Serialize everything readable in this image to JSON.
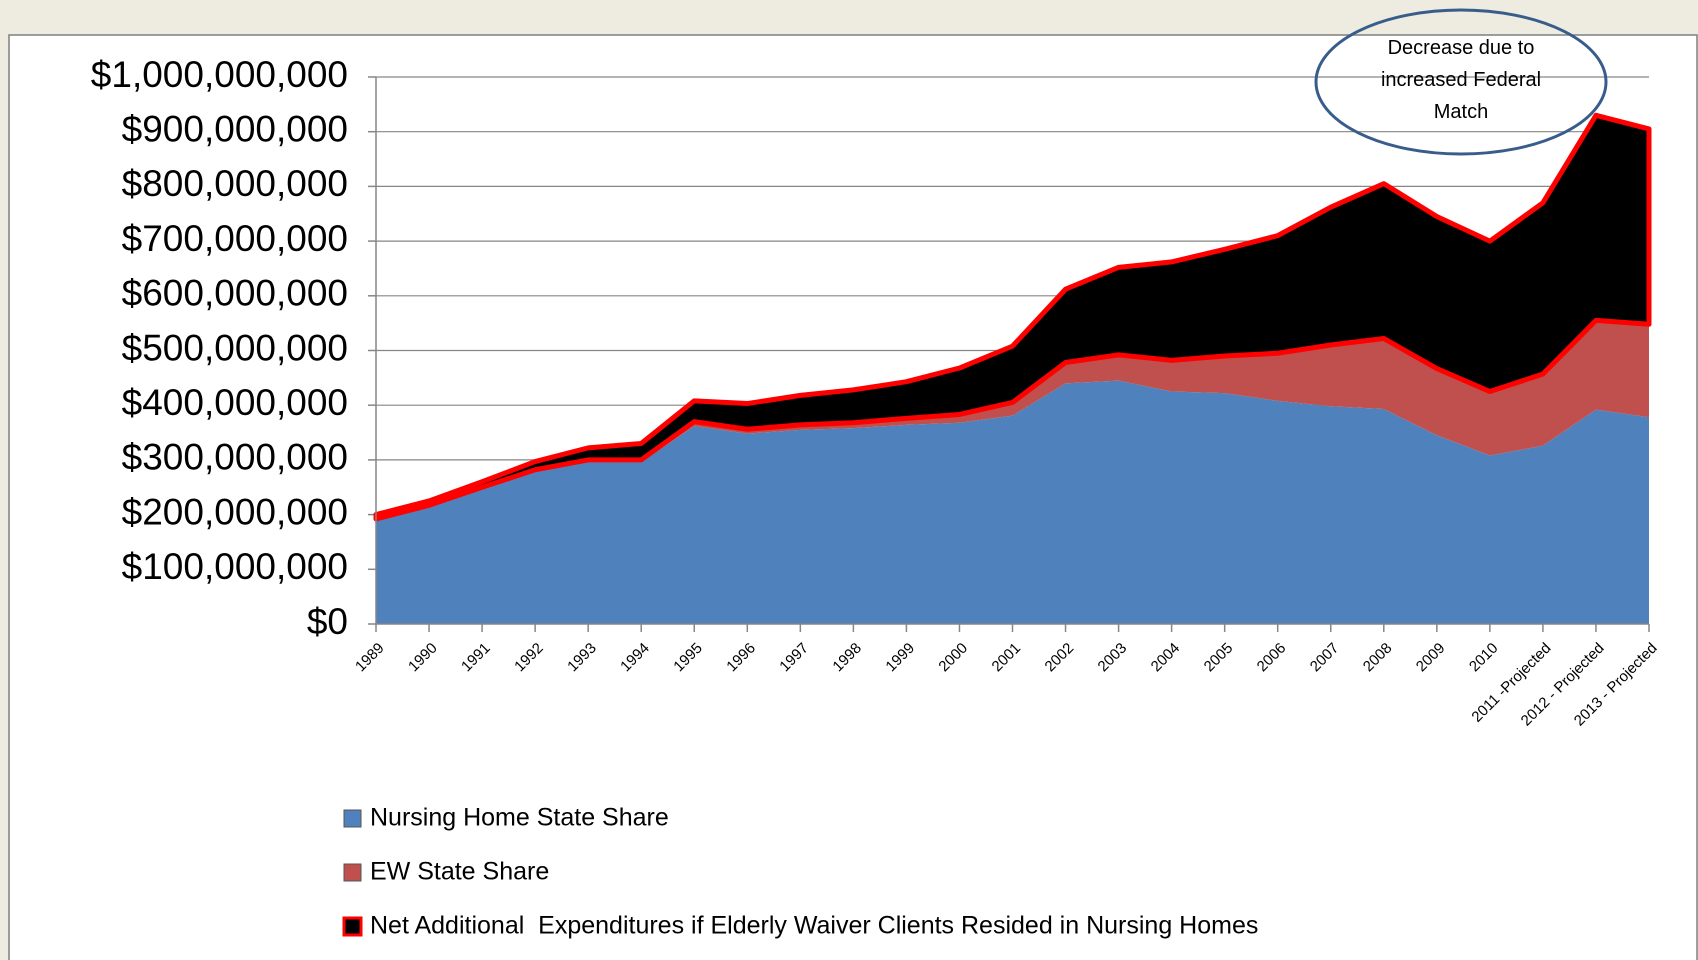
{
  "chart_data": {
    "type": "stacked_area",
    "categories": [
      "1989",
      "1990",
      "1991",
      "1992",
      "1993",
      "1994",
      "1995",
      "1996",
      "1997",
      "1998",
      "1999",
      "2000",
      "2001",
      "2002",
      "2003",
      "2004",
      "2005",
      "2006",
      "2007",
      "2008",
      "2009",
      "2010",
      "2011 -Projected",
      "2012 - Projected",
      "2013 - Projected"
    ],
    "series": [
      {
        "name": "Nursing Home State Share",
        "color": "#4f81bd",
        "values": [
          190000000,
          215000000,
          248000000,
          278000000,
          296000000,
          296000000,
          362000000,
          348000000,
          355000000,
          358000000,
          364000000,
          368000000,
          381000000,
          440000000,
          445000000,
          425000000,
          422000000,
          408000000,
          398000000,
          393000000,
          345000000,
          308000000,
          326000000,
          392000000,
          378000000
        ]
      },
      {
        "name": "EW State Share",
        "color": "#c0504d",
        "values": [
          2000000,
          2000000,
          2000000,
          4000000,
          4000000,
          4000000,
          8000000,
          8000000,
          9000000,
          10000000,
          12000000,
          15000000,
          24000000,
          38000000,
          47000000,
          57000000,
          68000000,
          87000000,
          112000000,
          129000000,
          122000000,
          117000000,
          131000000,
          163000000,
          170000000
        ]
      },
      {
        "name": "Net Additional  Expenditures if Elderly Waiver Clients Resided in Nursing Homes",
        "color": "#000000",
        "edge_color": "#ff0000",
        "values": [
          8000000,
          8000000,
          10000000,
          15000000,
          22000000,
          30000000,
          38000000,
          47000000,
          54000000,
          60000000,
          67000000,
          85000000,
          103000000,
          134000000,
          160000000,
          180000000,
          195000000,
          215000000,
          252000000,
          283000000,
          278000000,
          275000000,
          313000000,
          375000000,
          357000000
        ]
      }
    ],
    "ylim": [
      0,
      1000000000
    ],
    "yticks": [
      {
        "value": 0,
        "label": "$0"
      },
      {
        "value": 100000000,
        "label": "$100,000,000"
      },
      {
        "value": 200000000,
        "label": "$200,000,000"
      },
      {
        "value": 300000000,
        "label": "$300,000,000"
      },
      {
        "value": 400000000,
        "label": "$400,000,000"
      },
      {
        "value": 500000000,
        "label": "$500,000,000"
      },
      {
        "value": 600000000,
        "label": "$600,000,000"
      },
      {
        "value": 700000000,
        "label": "$700,000,000"
      },
      {
        "value": 800000000,
        "label": "$800,000,000"
      },
      {
        "value": 900000000,
        "label": "$900,000,000"
      },
      {
        "value": 1000000000,
        "label": "$1,000,000,000"
      }
    ],
    "grid": true,
    "legend": "bottom",
    "annotation": "Decrease due to increased Federal Match"
  }
}
